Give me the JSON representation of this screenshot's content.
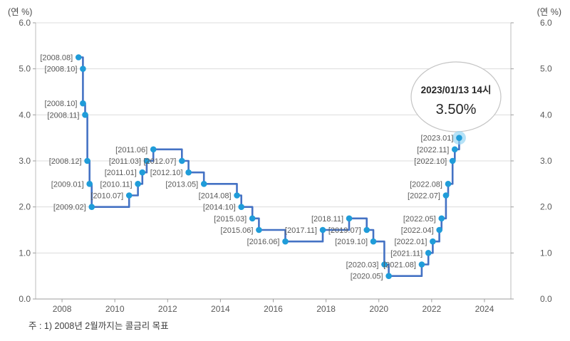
{
  "units": {
    "left": "(연 %)",
    "right": "(연 %)"
  },
  "footnote": "주 : 1) 2008년 2월까지는 콜금리 목표",
  "annotation": {
    "line1": "2023/01/13 14시",
    "line2": "3.50%"
  },
  "colors": {
    "line": "#4472c4",
    "marker": "#1f9cd9",
    "marker_glow": "#8fd2f3",
    "grid": "#dcdcdc",
    "frame": "#bdbdbd",
    "axis": "#9e9e9e",
    "tick_label": "#595959",
    "point_label": "#595959",
    "annotation_border": "#c4c4c4",
    "annotation_text": "#262626"
  },
  "chart_data": {
    "type": "line",
    "subtype": "step",
    "title": "",
    "xlabel": "",
    "ylabel": "(연 %)",
    "xlim": [
      2007,
      2025
    ],
    "ylim": [
      0,
      6
    ],
    "grid": true,
    "x_ticks": [
      2008,
      2010,
      2012,
      2014,
      2016,
      2018,
      2020,
      2022,
      2024
    ],
    "y_ticks": [
      "0.0",
      "1.0",
      "2.0",
      "3.0",
      "4.0",
      "5.0",
      "6.0"
    ],
    "y_axis_both_sides": true,
    "highlight_last_point": true,
    "points": [
      {
        "date": "2008.08",
        "value": 5.25,
        "label": "[2008.08]"
      },
      {
        "date": "2008.10",
        "value": 5.0,
        "label": "[2008.10]"
      },
      {
        "date": "2008.10",
        "value": 4.25,
        "label": "[2008.10]"
      },
      {
        "date": "2008.11",
        "value": 4.0,
        "label": "[2008.11]"
      },
      {
        "date": "2008.12",
        "value": 3.0,
        "label": "[2008.12]"
      },
      {
        "date": "2009.01",
        "value": 2.5,
        "label": "[2009.01]"
      },
      {
        "date": "2009.02",
        "value": 2.0,
        "label": "[2009.02]"
      },
      {
        "date": "2010.07",
        "value": 2.25,
        "label": "[2010.07]"
      },
      {
        "date": "2010.11",
        "value": 2.5,
        "label": "[2010.11]"
      },
      {
        "date": "2011.01",
        "value": 2.75,
        "label": "[2011.01]"
      },
      {
        "date": "2011.03",
        "value": 3.0,
        "label": "[2011.03]"
      },
      {
        "date": "2011.06",
        "value": 3.25,
        "label": "[2011.06]"
      },
      {
        "date": "2012.07",
        "value": 3.0,
        "label": "[2012.07]"
      },
      {
        "date": "2012.10",
        "value": 2.75,
        "label": "[2012.10]"
      },
      {
        "date": "2013.05",
        "value": 2.5,
        "label": "[2013.05]"
      },
      {
        "date": "2014.08",
        "value": 2.25,
        "label": "[2014.08]"
      },
      {
        "date": "2014.10",
        "value": 2.0,
        "label": "[2014.10]"
      },
      {
        "date": "2015.03",
        "value": 1.75,
        "label": "[2015.03]"
      },
      {
        "date": "2015.06",
        "value": 1.5,
        "label": "[2015.06]"
      },
      {
        "date": "2016.06",
        "value": 1.25,
        "label": "[2016.06]"
      },
      {
        "date": "2017.11",
        "value": 1.5,
        "label": "[2017.11]"
      },
      {
        "date": "2018.11",
        "value": 1.75,
        "label": "[2018.11]"
      },
      {
        "date": "2019.07",
        "value": 1.5,
        "label": "[2019.07]"
      },
      {
        "date": "2019.10",
        "value": 1.25,
        "label": "[2019.10]"
      },
      {
        "date": "2020.03",
        "value": 0.75,
        "label": "[2020.03]"
      },
      {
        "date": "2020.05",
        "value": 0.5,
        "label": "[2020.05]"
      },
      {
        "date": "2021.08",
        "value": 0.75,
        "label": "[2021.08]"
      },
      {
        "date": "2021.11",
        "value": 1.0,
        "label": "[2021.11]"
      },
      {
        "date": "2022.01",
        "value": 1.25,
        "label": "[2022.01]"
      },
      {
        "date": "2022.04",
        "value": 1.5,
        "label": "[2022.04]"
      },
      {
        "date": "2022.05",
        "value": 1.75,
        "label": "[2022.05]"
      },
      {
        "date": "2022.07",
        "value": 2.25,
        "label": "[2022.07]"
      },
      {
        "date": "2022.08",
        "value": 2.5,
        "label": "[2022.08]"
      },
      {
        "date": "2022.10",
        "value": 3.0,
        "label": "[2022.10]"
      },
      {
        "date": "2022.11",
        "value": 3.25,
        "label": "[2022.11]"
      },
      {
        "date": "2023.01",
        "value": 3.5,
        "label": "[2023.01]"
      }
    ]
  }
}
